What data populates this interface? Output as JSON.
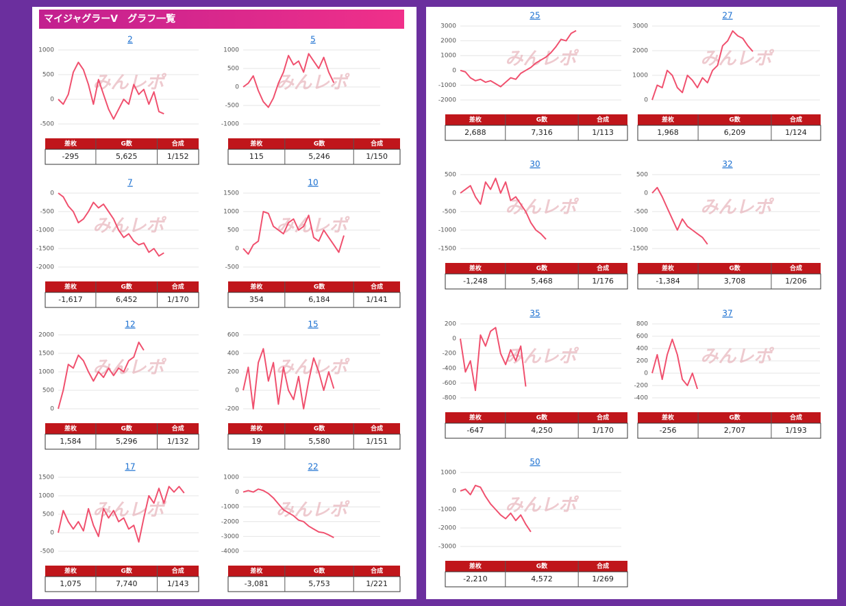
{
  "header": {
    "title": "マイジャグラーV　グラフ一覧"
  },
  "watermark": "みんレポ",
  "chart_data": [
    {
      "type": "line",
      "title": "2",
      "ylim": [
        -500,
        1000
      ],
      "yticks": [
        1000,
        500,
        0,
        -500
      ],
      "grid": true,
      "color": "#f0506e",
      "values": [
        0,
        -100,
        100,
        550,
        750,
        600,
        300,
        -100,
        400,
        100,
        -200,
        -400,
        -200,
        0,
        -100,
        300,
        100,
        200,
        -100,
        150,
        -250,
        -295
      ],
      "table": {
        "header": [
          "差枚",
          "G数",
          "合成"
        ],
        "row": [
          "-295",
          "5,625",
          "1/152"
        ]
      }
    },
    {
      "type": "line",
      "title": "5",
      "ylim": [
        -1000,
        1000
      ],
      "yticks": [
        1000,
        500,
        0,
        -500,
        -1000
      ],
      "grid": true,
      "color": "#f0506e",
      "values": [
        0,
        100,
        300,
        -100,
        -400,
        -550,
        -300,
        100,
        400,
        850,
        600,
        700,
        400,
        900,
        700,
        500,
        800,
        400,
        115
      ],
      "table": {
        "header": [
          "差枚",
          "G数",
          "合成"
        ],
        "row": [
          "115",
          "5,246",
          "1/150"
        ]
      }
    },
    {
      "type": "line",
      "title": "7",
      "ylim": [
        -2000,
        0
      ],
      "yticks": [
        0,
        -500,
        -1000,
        -1500,
        -2000
      ],
      "grid": true,
      "color": "#f0506e",
      "values": [
        0,
        -100,
        -350,
        -500,
        -800,
        -700,
        -500,
        -250,
        -400,
        -300,
        -500,
        -700,
        -1000,
        -1200,
        -1100,
        -1300,
        -1400,
        -1350,
        -1600,
        -1500,
        -1700,
        -1617
      ],
      "table": {
        "header": [
          "差枚",
          "G数",
          "合成"
        ],
        "row": [
          "-1,617",
          "6,452",
          "1/170"
        ]
      }
    },
    {
      "type": "line",
      "title": "10",
      "ylim": [
        -500,
        1500
      ],
      "yticks": [
        1500,
        1000,
        500,
        0,
        -500
      ],
      "grid": true,
      "color": "#f0506e",
      "values": [
        0,
        -150,
        100,
        200,
        1000,
        950,
        600,
        500,
        400,
        700,
        800,
        500,
        600,
        900,
        300,
        200,
        500,
        300,
        100,
        -100,
        354
      ],
      "table": {
        "header": [
          "差枚",
          "G数",
          "合成"
        ],
        "row": [
          "354",
          "6,184",
          "1/141"
        ]
      }
    },
    {
      "type": "line",
      "title": "12",
      "ylim": [
        0,
        2000
      ],
      "yticks": [
        2000,
        1500,
        1000,
        500,
        0
      ],
      "grid": true,
      "color": "#f0506e",
      "values": [
        0,
        500,
        1200,
        1100,
        1450,
        1300,
        1000,
        750,
        1000,
        850,
        1100,
        900,
        1100,
        1000,
        1300,
        1400,
        1800,
        1584
      ],
      "table": {
        "header": [
          "差枚",
          "G数",
          "合成"
        ],
        "row": [
          "1,584",
          "5,296",
          "1/132"
        ]
      }
    },
    {
      "type": "line",
      "title": "15",
      "ylim": [
        -200,
        600
      ],
      "yticks": [
        600,
        400,
        200,
        0,
        -200
      ],
      "grid": true,
      "color": "#f0506e",
      "values": [
        0,
        250,
        -200,
        300,
        450,
        100,
        300,
        -150,
        250,
        0,
        -100,
        150,
        -200,
        100,
        350,
        200,
        0,
        200,
        19
      ],
      "table": {
        "header": [
          "差枚",
          "G数",
          "合成"
        ],
        "row": [
          "19",
          "5,580",
          "1/151"
        ]
      }
    },
    {
      "type": "line",
      "title": "17",
      "ylim": [
        -500,
        1500
      ],
      "yticks": [
        1500,
        1000,
        500,
        0,
        -500
      ],
      "grid": true,
      "color": "#f0506e",
      "values": [
        0,
        600,
        300,
        100,
        300,
        50,
        650,
        200,
        -100,
        650,
        400,
        600,
        300,
        400,
        100,
        200,
        -250,
        400,
        1000,
        800,
        1200,
        800,
        1250,
        1100,
        1250,
        1075
      ],
      "table": {
        "header": [
          "差枚",
          "G数",
          "合成"
        ],
        "row": [
          "1,075",
          "7,740",
          "1/143"
        ]
      }
    },
    {
      "type": "line",
      "title": "22",
      "ylim": [
        -4000,
        1000
      ],
      "yticks": [
        1000,
        0,
        -1000,
        -2000,
        -3000,
        -4000
      ],
      "grid": true,
      "color": "#f0506e",
      "values": [
        0,
        100,
        0,
        200,
        100,
        -100,
        -400,
        -800,
        -1200,
        -1400,
        -1600,
        -1900,
        -2000,
        -2300,
        -2500,
        -2700,
        -2750,
        -2900,
        -3081
      ],
      "table": {
        "header": [
          "差枚",
          "G数",
          "合成"
        ],
        "row": [
          "-3,081",
          "5,753",
          "1/221"
        ]
      }
    },
    {
      "type": "line",
      "title": "25",
      "ylim": [
        -2000,
        3000
      ],
      "yticks": [
        3000,
        2000,
        1000,
        0,
        -1000,
        -2000
      ],
      "grid": true,
      "color": "#f0506e",
      "values": [
        0,
        -100,
        -500,
        -700,
        -600,
        -800,
        -700,
        -900,
        -1100,
        -800,
        -500,
        -600,
        -200,
        0,
        200,
        500,
        700,
        900,
        1200,
        1600,
        2100,
        2000,
        2500,
        2688
      ],
      "table": {
        "header": [
          "差枚",
          "G数",
          "合成"
        ],
        "row": [
          "2,688",
          "7,316",
          "1/113"
        ]
      }
    },
    {
      "type": "line",
      "title": "27",
      "ylim": [
        0,
        3000
      ],
      "yticks": [
        3000,
        2000,
        1000,
        0
      ],
      "grid": true,
      "color": "#f0506e",
      "values": [
        0,
        600,
        500,
        1200,
        1000,
        500,
        300,
        1000,
        800,
        500,
        900,
        700,
        1200,
        1400,
        2200,
        2400,
        2800,
        2600,
        2500,
        2200,
        1968
      ],
      "table": {
        "header": [
          "差枚",
          "G数",
          "合成"
        ],
        "row": [
          "1,968",
          "6,209",
          "1/124"
        ]
      }
    },
    {
      "type": "line",
      "title": "30",
      "ylim": [
        -1500,
        500
      ],
      "yticks": [
        500,
        0,
        -500,
        -1000,
        -1500
      ],
      "grid": true,
      "color": "#f0506e",
      "values": [
        0,
        100,
        200,
        -100,
        -300,
        300,
        100,
        400,
        0,
        300,
        -200,
        -100,
        -300,
        -500,
        -800,
        -1000,
        -1100,
        -1248
      ],
      "table": {
        "header": [
          "差枚",
          "G数",
          "合成"
        ],
        "row": [
          "-1,248",
          "5,468",
          "1/176"
        ]
      }
    },
    {
      "type": "line",
      "title": "32",
      "ylim": [
        -1500,
        500
      ],
      "yticks": [
        500,
        0,
        -500,
        -1000,
        -1500
      ],
      "grid": true,
      "color": "#f0506e",
      "values": [
        0,
        150,
        -100,
        -400,
        -700,
        -1000,
        -700,
        -900,
        -1000,
        -1100,
        -1200,
        -1384
      ],
      "table": {
        "header": [
          "差枚",
          "G数",
          "合成"
        ],
        "row": [
          "-1,384",
          "3,708",
          "1/206"
        ]
      }
    },
    {
      "type": "line",
      "title": "35",
      "ylim": [
        -800,
        200
      ],
      "yticks": [
        200,
        0,
        -200,
        -400,
        -600,
        -800
      ],
      "grid": true,
      "color": "#f0506e",
      "values": [
        0,
        -450,
        -300,
        -700,
        50,
        -100,
        100,
        150,
        -200,
        -350,
        -150,
        -300,
        -100,
        -647
      ],
      "table": {
        "header": [
          "差枚",
          "G数",
          "合成"
        ],
        "row": [
          "-647",
          "4,250",
          "1/170"
        ]
      }
    },
    {
      "type": "line",
      "title": "37",
      "ylim": [
        -400,
        800
      ],
      "yticks": [
        800,
        600,
        400,
        200,
        0,
        -200,
        -400
      ],
      "grid": true,
      "color": "#f0506e",
      "values": [
        0,
        300,
        -100,
        300,
        550,
        300,
        -100,
        -200,
        0,
        -256
      ],
      "table": {
        "header": [
          "差枚",
          "G数",
          "合成"
        ],
        "row": [
          "-256",
          "2,707",
          "1/193"
        ]
      }
    },
    {
      "type": "line",
      "title": "50",
      "ylim": [
        -3000,
        1000
      ],
      "yticks": [
        1000,
        0,
        -1000,
        -2000,
        -3000
      ],
      "grid": true,
      "color": "#f0506e",
      "values": [
        0,
        100,
        -200,
        300,
        200,
        -300,
        -700,
        -1000,
        -1300,
        -1500,
        -1200,
        -1600,
        -1300,
        -1800,
        -2210
      ],
      "table": {
        "header": [
          "差枚",
          "G数",
          "合成"
        ],
        "row": [
          "-2,210",
          "4,572",
          "1/269"
        ]
      }
    }
  ]
}
